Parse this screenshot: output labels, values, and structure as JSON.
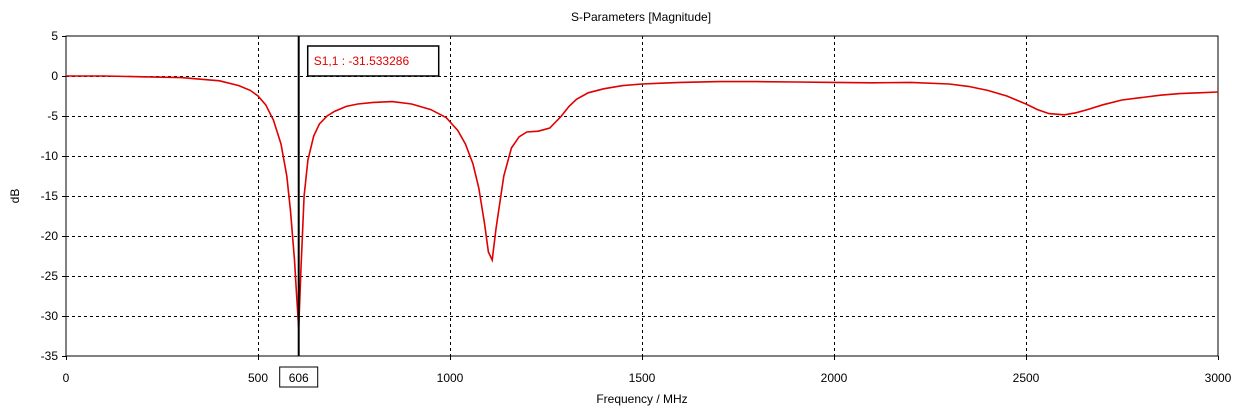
{
  "chart_data": {
    "type": "line",
    "title": "S-Parameters [Magnitude]",
    "xlabel": "Frequency / MHz",
    "ylabel": "dB",
    "xlim": [
      0,
      3000
    ],
    "ylim": [
      -35,
      5
    ],
    "xticks": [
      0,
      500,
      1000,
      1500,
      2000,
      2500,
      3000
    ],
    "yticks": [
      5,
      0,
      -5,
      -10,
      -15,
      -20,
      -25,
      -30,
      -35
    ],
    "grid": true,
    "colors": {
      "series": "#e00000",
      "marker": "#000000"
    },
    "series": [
      {
        "name": "S1,1",
        "x": [
          0,
          100,
          200,
          300,
          400,
          450,
          480,
          500,
          520,
          540,
          560,
          575,
          585,
          595,
          600,
          606,
          612,
          620,
          630,
          645,
          660,
          680,
          700,
          730,
          760,
          800,
          850,
          900,
          950,
          990,
          1020,
          1040,
          1060,
          1075,
          1090,
          1100,
          1110,
          1120,
          1140,
          1160,
          1180,
          1200,
          1230,
          1260,
          1290,
          1310,
          1330,
          1360,
          1400,
          1450,
          1500,
          1550,
          1600,
          1700,
          1800,
          1900,
          2000,
          2100,
          2200,
          2300,
          2350,
          2400,
          2450,
          2500,
          2530,
          2560,
          2600,
          2630,
          2660,
          2700,
          2750,
          2800,
          2850,
          2900,
          2950,
          3000
        ],
        "y": [
          0,
          0,
          -0.1,
          -0.2,
          -0.6,
          -1.2,
          -1.8,
          -2.5,
          -3.6,
          -5.5,
          -8.5,
          -12.5,
          -17,
          -23,
          -27,
          -31.53,
          -24,
          -15,
          -10.5,
          -7.5,
          -6,
          -5,
          -4.4,
          -3.8,
          -3.5,
          -3.3,
          -3.2,
          -3.5,
          -4.2,
          -5.2,
          -6.8,
          -8.5,
          -11,
          -14,
          -18.5,
          -22,
          -23,
          -19,
          -12.5,
          -9,
          -7.6,
          -7,
          -6.9,
          -6.5,
          -5,
          -3.8,
          -2.9,
          -2.1,
          -1.6,
          -1.2,
          -1.0,
          -0.9,
          -0.8,
          -0.7,
          -0.7,
          -0.75,
          -0.8,
          -0.85,
          -0.8,
          -1.0,
          -1.3,
          -1.8,
          -2.5,
          -3.5,
          -4.2,
          -4.7,
          -4.85,
          -4.6,
          -4.2,
          -3.6,
          -3.0,
          -2.7,
          -2.4,
          -2.2,
          -2.1,
          -2.0
        ]
      }
    ],
    "marker": {
      "x_label": "606",
      "label": "S1,1 : -31.533286"
    }
  }
}
